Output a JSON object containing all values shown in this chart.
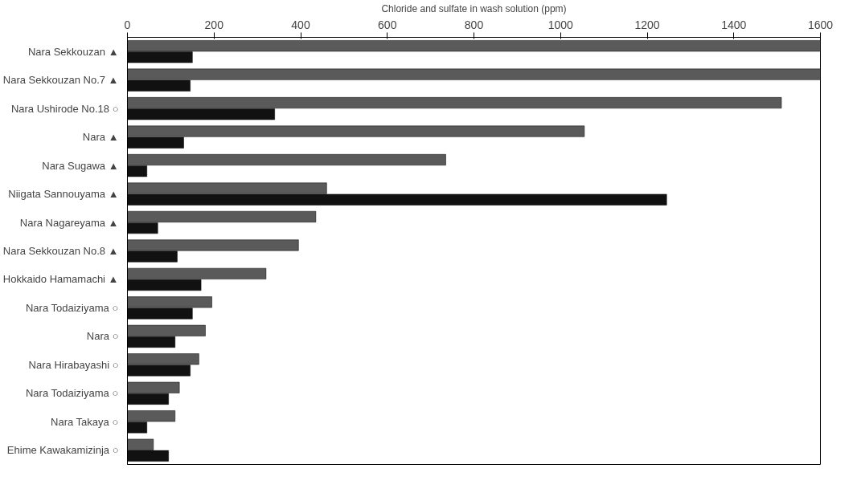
{
  "chart_data": {
    "type": "bar",
    "orientation": "horizontal",
    "xlabel": "Chloride and sulfate in wash solution (ppm)",
    "categories": [
      "Nara Sekkouzan ▲",
      "Nara Sekkouzan No.7 ▲",
      "Nara Ushirode No.18 ○",
      "Nara ▲",
      "Nara Sugawa ▲",
      "Niigata Sannouyama ▲",
      "Nara Nagareyama ▲",
      "Nara Sekkouzan No.8 ▲",
      "Hokkaido Hamamachi ▲",
      "Nara Todaiziyama ○",
      "Nara ○",
      "Nara Hirabayashi ○",
      "Nara Todaiziyama ○",
      "Nara Takaya ○",
      "Ehime Kawakamizinja ○"
    ],
    "series": [
      {
        "color": "#5a5a5a",
        "values": [
          1600,
          1600,
          1510,
          1055,
          735,
          460,
          435,
          395,
          320,
          195,
          180,
          165,
          120,
          110,
          60
        ]
      },
      {
        "color": "#111111",
        "values": [
          150,
          145,
          340,
          130,
          45,
          1245,
          70,
          115,
          170,
          150,
          110,
          145,
          95,
          45,
          95
        ]
      }
    ],
    "xlim": [
      0,
      1600
    ],
    "xticks": [
      0,
      200,
      400,
      600,
      800,
      1000,
      1200,
      1400,
      1600
    ],
    "grid": false
  }
}
